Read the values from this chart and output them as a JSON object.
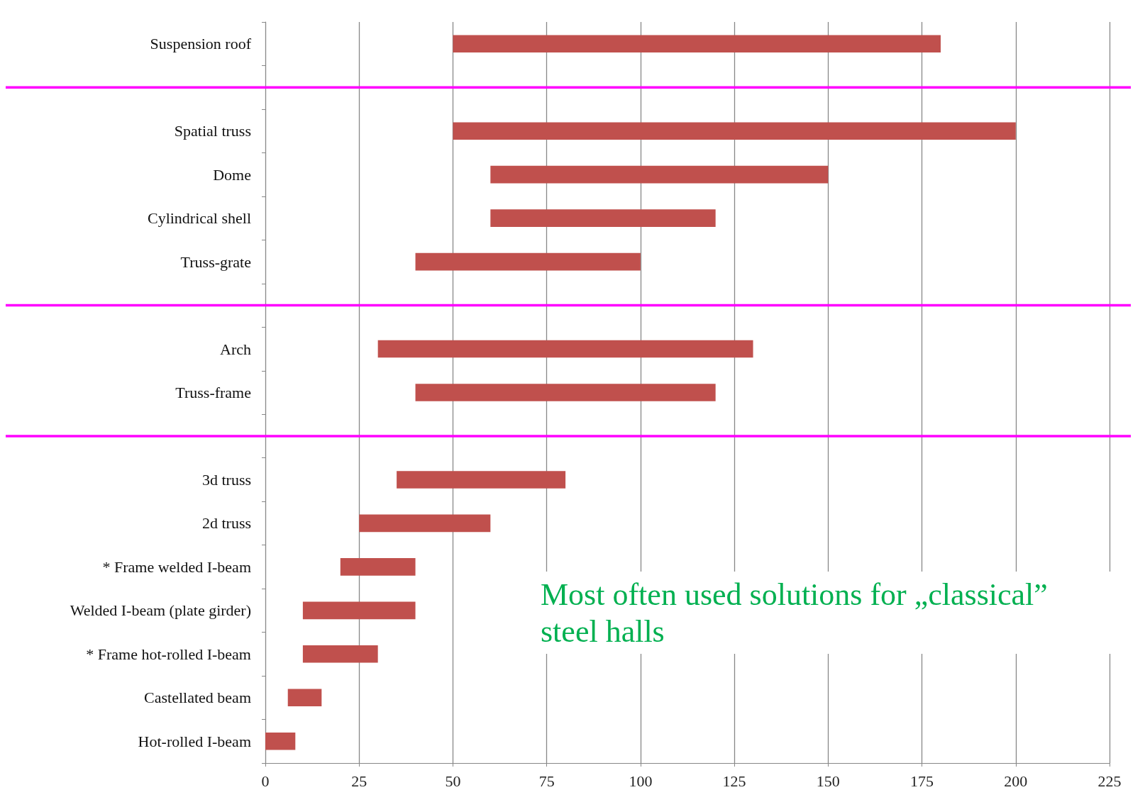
{
  "chart_data": {
    "type": "bar",
    "orientation": "horizontal",
    "categories": [
      "Suspension roof",
      null,
      "Spatial truss",
      "Dome",
      "Cylindrical shell",
      "Truss-grate",
      null,
      "Arch",
      "Truss-frame",
      null,
      "3d truss",
      "2d truss",
      "* Frame welded I-beam",
      "Welded I-beam (plate girder)",
      "* Frame hot-rolled I-beam",
      "Castellated beam",
      "Hot-rolled I-beam"
    ],
    "base": [
      50,
      null,
      50,
      60,
      60,
      40,
      null,
      30,
      40,
      null,
      35,
      25,
      20,
      10,
      10,
      6,
      0
    ],
    "values": [
      130,
      null,
      150,
      90,
      60,
      60,
      null,
      100,
      80,
      null,
      45,
      35,
      20,
      30,
      20,
      9,
      8
    ],
    "color": "#c0504d",
    "xlim": [
      0,
      225
    ],
    "xticks": [
      0,
      25,
      50,
      75,
      100,
      125,
      150,
      175,
      200,
      225
    ],
    "grid": "x",
    "annotations": [
      "Most often used solutions for „classical” steel halls"
    ]
  }
}
